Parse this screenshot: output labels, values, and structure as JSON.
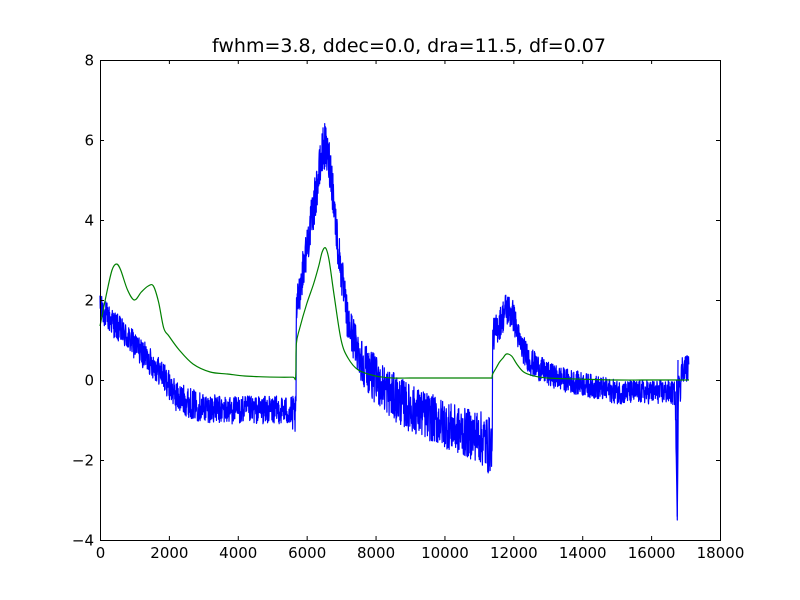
{
  "chart_data": {
    "type": "line",
    "title": "fwhm=3.8, ddec=0.0, dra=11.5, df=0.07",
    "xlabel": "",
    "ylabel": "",
    "xlim": [
      0,
      18000
    ],
    "ylim": [
      -4,
      8
    ],
    "x_ticks": [
      0,
      2000,
      4000,
      6000,
      8000,
      10000,
      12000,
      14000,
      16000,
      18000
    ],
    "x_tick_labels": [
      "0",
      "2000",
      "4000",
      "6000",
      "8000",
      "10000",
      "12000",
      "14000",
      "16000",
      "18000"
    ],
    "y_ticks": [
      -4,
      -2,
      0,
      2,
      4,
      6,
      8
    ],
    "y_tick_labels": [
      "−4",
      "−2",
      "0",
      "2",
      "4",
      "6",
      "8"
    ],
    "grid": false,
    "legend": "none",
    "series": [
      {
        "color": "#0000ff",
        "style": "noisy",
        "x": [
          0,
          300,
          800,
          1300,
          1800,
          2200,
          2800,
          3500,
          4500,
          5400,
          5690,
          5700,
          5900,
          6200,
          6500,
          6700,
          6900,
          7200,
          7600,
          8000,
          8500,
          9000,
          9500,
          10000,
          10500,
          11000,
          11300,
          11390,
          11400,
          11600,
          11800,
          12000,
          12200,
          12500,
          13000,
          13500,
          14000,
          14500,
          15000,
          15500,
          16000,
          16500,
          16700,
          16760,
          16800,
          16850,
          16900,
          17000,
          17100
        ],
        "y": [
          1.8,
          1.5,
          1.05,
          0.6,
          0.15,
          -0.4,
          -0.65,
          -0.75,
          -0.75,
          -0.75,
          -0.9,
          1.7,
          2.8,
          4.3,
          5.9,
          5.3,
          3.4,
          1.4,
          0.5,
          0.0,
          -0.4,
          -0.7,
          -0.9,
          -1.1,
          -1.3,
          -1.4,
          -1.65,
          -1.6,
          1.1,
          1.4,
          1.8,
          1.6,
          0.9,
          0.45,
          0.15,
          0.0,
          -0.1,
          -0.2,
          -0.3,
          -0.3,
          -0.3,
          -0.3,
          -0.35,
          -3.5,
          0.3,
          -0.2,
          0.3,
          0.3,
          0.3
        ],
        "noise": [
          0.35,
          0.35,
          0.35,
          0.35,
          0.35,
          0.38,
          0.38,
          0.35,
          0.35,
          0.35,
          0.5,
          0.5,
          0.5,
          0.55,
          0.6,
          0.6,
          0.55,
          0.5,
          0.6,
          0.6,
          0.6,
          0.6,
          0.6,
          0.6,
          0.6,
          0.65,
          0.75,
          0.5,
          0.4,
          0.4,
          0.45,
          0.4,
          0.35,
          0.35,
          0.3,
          0.3,
          0.3,
          0.3,
          0.3,
          0.3,
          0.3,
          0.3,
          0.3,
          0,
          0.35,
          0.35,
          0.35,
          0.35,
          0.35
        ]
      },
      {
        "color": "#008000",
        "style": "smooth",
        "x": [
          0,
          200,
          350,
          480,
          600,
          800,
          1000,
          1200,
          1400,
          1550,
          1700,
          1850,
          2000,
          2300,
          2700,
          3200,
          3700,
          4200,
          4700,
          5200,
          5600,
          5680,
          5700,
          5800,
          6000,
          6200,
          6350,
          6450,
          6550,
          6650,
          6800,
          7000,
          7200,
          7500,
          8000,
          8500,
          9000,
          9500,
          10000,
          10500,
          11000,
          11350,
          11380,
          11400,
          11500,
          11600,
          11700,
          11800,
          11950,
          12100,
          12300,
          12600,
          13000,
          14000,
          15000,
          16000,
          16500,
          16800,
          17000,
          17100
        ],
        "y": [
          1.35,
          2.2,
          2.75,
          2.9,
          2.75,
          2.25,
          2.0,
          2.2,
          2.35,
          2.35,
          1.95,
          1.3,
          1.1,
          0.75,
          0.4,
          0.2,
          0.15,
          0.1,
          0.08,
          0.07,
          0.07,
          0.07,
          0.9,
          1.3,
          1.9,
          2.4,
          2.85,
          3.2,
          3.3,
          3.0,
          2.1,
          1.0,
          0.55,
          0.25,
          0.1,
          0.05,
          0.05,
          0.05,
          0.05,
          0.05,
          0.05,
          0.05,
          0.05,
          0.15,
          0.3,
          0.45,
          0.55,
          0.65,
          0.6,
          0.4,
          0.2,
          0.1,
          0.05,
          0.02,
          0.0,
          0.0,
          0.0,
          0.0,
          0.0,
          0.0
        ]
      }
    ]
  }
}
